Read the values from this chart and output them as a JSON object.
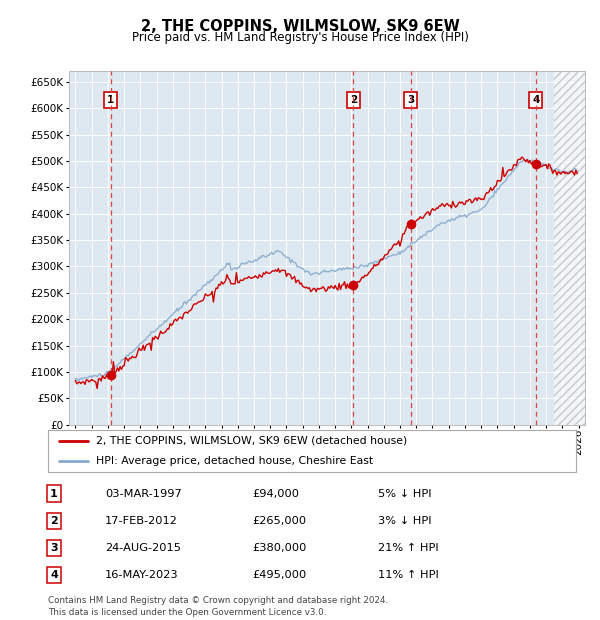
{
  "title": "2, THE COPPINS, WILMSLOW, SK9 6EW",
  "subtitle": "Price paid vs. HM Land Registry's House Price Index (HPI)",
  "sale_year_floats": [
    1997.17,
    2012.12,
    2015.65,
    2023.37
  ],
  "sale_prices": [
    94000,
    265000,
    380000,
    495000
  ],
  "sale_labels": [
    "1",
    "2",
    "3",
    "4"
  ],
  "legend_label_red": "2, THE COPPINS, WILMSLOW, SK9 6EW (detached house)",
  "legend_label_blue": "HPI: Average price, detached house, Cheshire East",
  "footer": "Contains HM Land Registry data © Crown copyright and database right 2024.\nThis data is licensed under the Open Government Licence v3.0.",
  "red_color": "#cc0000",
  "blue_color": "#88aacc",
  "dashed_red": "#dd4444",
  "box_color": "#cc0000",
  "bg_color": "#dde8f0",
  "ylim": [
    0,
    670000
  ],
  "yticks": [
    0,
    50000,
    100000,
    150000,
    200000,
    250000,
    300000,
    350000,
    400000,
    450000,
    500000,
    550000,
    600000,
    650000
  ],
  "xlim_start": 1994.6,
  "xlim_end": 2026.4,
  "hatch_start": 2024.5,
  "table_rows": [
    [
      "1",
      "03-MAR-1997",
      "£94,000",
      "5% ↓ HPI"
    ],
    [
      "2",
      "17-FEB-2012",
      "£265,000",
      "3% ↓ HPI"
    ],
    [
      "3",
      "24-AUG-2015",
      "£380,000",
      "21% ↑ HPI"
    ],
    [
      "4",
      "16-MAY-2023",
      "£495,000",
      "11% ↑ HPI"
    ]
  ]
}
